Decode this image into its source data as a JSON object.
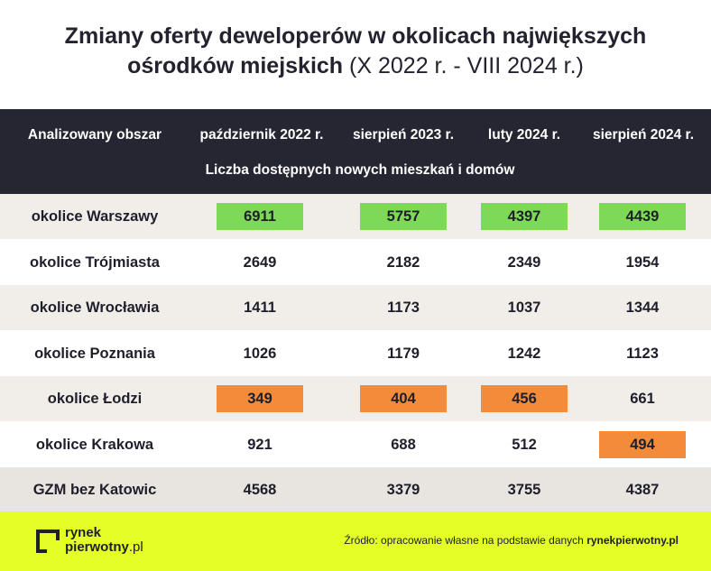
{
  "title": {
    "line1": "Zmiany oferty deweloperów w okolicach największych",
    "line2_bold": "ośrodków miejskich",
    "line2_light": "(X 2022 r. - VIII 2024 r.)"
  },
  "table": {
    "area_header": "Analizowany obszar",
    "subheader": "Liczba dostępnych nowych mieszkań i domów",
    "columns": [
      "październik 2022 r.",
      "sierpień 2023 r.",
      "luty 2024 r.",
      "sierpień 2024 r."
    ],
    "rows": [
      {
        "label": "okolice Warszawy",
        "values": [
          "6911",
          "5757",
          "4397",
          "4439"
        ],
        "highlight": [
          "green",
          "green",
          "green",
          "green"
        ]
      },
      {
        "label": "okolice Trójmiasta",
        "values": [
          "2649",
          "2182",
          "2349",
          "1954"
        ],
        "highlight": [
          "",
          "",
          "",
          ""
        ]
      },
      {
        "label": "okolice Wrocławia",
        "values": [
          "1411",
          "1173",
          "1037",
          "1344"
        ],
        "highlight": [
          "",
          "",
          "",
          ""
        ]
      },
      {
        "label": "okolice Poznania",
        "values": [
          "1026",
          "1179",
          "1242",
          "1123"
        ],
        "highlight": [
          "",
          "",
          "",
          ""
        ]
      },
      {
        "label": "okolice Łodzi",
        "values": [
          "349",
          "404",
          "456",
          "661"
        ],
        "highlight": [
          "orange",
          "orange",
          "orange",
          ""
        ]
      },
      {
        "label": "okolice Krakowa",
        "values": [
          "921",
          "688",
          "512",
          "494"
        ],
        "highlight": [
          "",
          "",
          "",
          "orange"
        ]
      },
      {
        "label": "GZM bez Katowic",
        "values": [
          "4568",
          "3379",
          "3755",
          "4387"
        ],
        "highlight": [
          "",
          "",
          "",
          ""
        ]
      }
    ]
  },
  "chart_data": {
    "type": "table",
    "columns": [
      "Analizowany obszar",
      "październik 2022 r.",
      "sierpień 2023 r.",
      "luty 2024 r.",
      "sierpień 2024 r."
    ],
    "rows": [
      [
        "okolice Warszawy",
        6911,
        5757,
        4397,
        4439
      ],
      [
        "okolice Trójmiasta",
        2649,
        2182,
        2349,
        1954
      ],
      [
        "okolice Wrocławia",
        1411,
        1173,
        1037,
        1344
      ],
      [
        "okolice Poznania",
        1026,
        1179,
        1242,
        1123
      ],
      [
        "okolice Łodzi",
        349,
        404,
        456,
        661
      ],
      [
        "okolice Krakowa",
        921,
        688,
        512,
        494
      ],
      [
        "GZM bez Katowic",
        4568,
        3379,
        3755,
        4387
      ]
    ],
    "highlight_colors": {
      "green": "#7ed957",
      "orange": "#f28c3b"
    }
  },
  "footer": {
    "logo_line1": "rynek",
    "logo_line2": "pierwotny",
    "logo_suffix": ".pl",
    "source_text": "Źródło: opracowanie własne na podstawie danych",
    "source_bold": "rynekpierwotny.pl"
  },
  "colors": {
    "header_bg": "#262633",
    "footer_bg": "#e3ff25",
    "row_shade": "#f1eeea",
    "green": "#7ed957",
    "orange": "#f28c3b"
  }
}
